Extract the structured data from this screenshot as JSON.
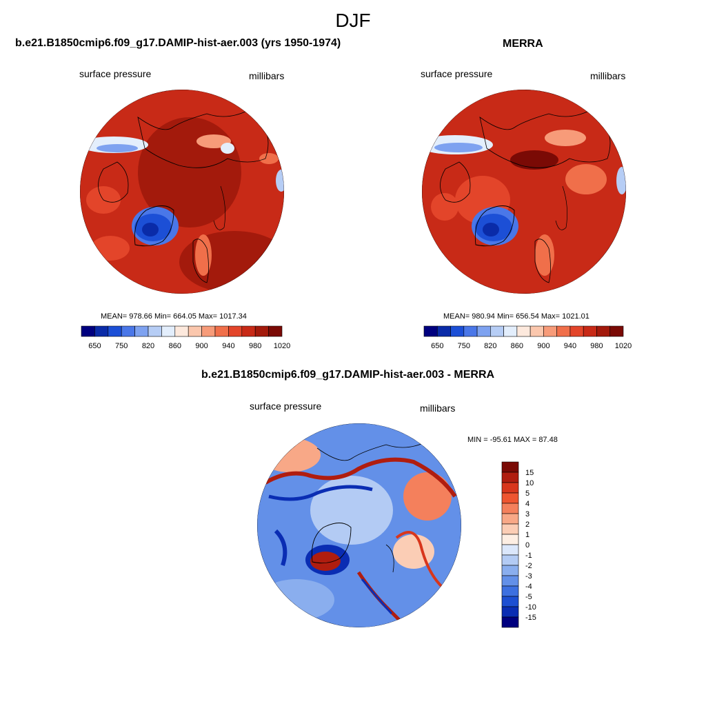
{
  "page": {
    "title": "DJF"
  },
  "panels": [
    {
      "title": "b.e21.B1850cmip6.f09_g17.DAMIP-hist-aer.003 (yrs 1950-1974)",
      "left_label": "surface pressure",
      "right_label": "millibars",
      "stats": "MEAN= 978.66  Min= 664.05  Max= 1017.34"
    },
    {
      "title": "MERRA",
      "left_label": "surface pressure",
      "right_label": "millibars",
      "stats": "MEAN= 980.94  Min= 656.54  Max= 1021.01"
    },
    {
      "title": "b.e21.B1850cmip6.f09_g17.DAMIP-hist-aer.003 - MERRA",
      "left_label": "surface pressure",
      "right_label": "millibars",
      "stats": "MIN = -95.61 MAX =  87.48"
    }
  ],
  "chart_data": [
    {
      "type": "heatmap",
      "projection": "north-polar-stereographic",
      "colorbar": {
        "orientation": "horizontal",
        "levels": [
          650,
          700,
          750,
          800,
          820,
          840,
          860,
          880,
          900,
          920,
          940,
          960,
          980,
          1000,
          1020
        ],
        "tick_labels": [
          "650",
          "750",
          "820",
          "860",
          "900",
          "940",
          "980",
          "1020"
        ],
        "colors": [
          "#00007f",
          "#0a2ba8",
          "#1c4fd6",
          "#4a77e8",
          "#7ea2f0",
          "#b6cdf5",
          "#e3eefc",
          "#fde9dd",
          "#fbc7ad",
          "#f79b79",
          "#f06f4a",
          "#e3452a",
          "#c82a17",
          "#a31a0c",
          "#7a0a05"
        ]
      },
      "mean": 978.66,
      "min": 664.05,
      "max": 1017.34
    },
    {
      "type": "heatmap",
      "projection": "north-polar-stereographic",
      "colorbar": {
        "orientation": "horizontal",
        "levels": [
          650,
          700,
          750,
          800,
          820,
          840,
          860,
          880,
          900,
          920,
          940,
          960,
          980,
          1000,
          1020
        ],
        "tick_labels": [
          "650",
          "750",
          "820",
          "860",
          "900",
          "940",
          "980",
          "1020"
        ],
        "colors": [
          "#00007f",
          "#0a2ba8",
          "#1c4fd6",
          "#4a77e8",
          "#7ea2f0",
          "#b6cdf5",
          "#e3eefc",
          "#fde9dd",
          "#fbc7ad",
          "#f79b79",
          "#f06f4a",
          "#e3452a",
          "#c82a17",
          "#a31a0c",
          "#7a0a05"
        ]
      },
      "mean": 980.94,
      "min": 656.54,
      "max": 1021.01
    },
    {
      "type": "heatmap",
      "projection": "north-polar-stereographic",
      "colorbar": {
        "orientation": "vertical",
        "levels": [
          15,
          10,
          5,
          4,
          3,
          2,
          1,
          0,
          -1,
          -2,
          -3,
          -4,
          -5,
          -10,
          -15
        ],
        "tick_labels": [
          "15",
          "10",
          "5",
          "4",
          "3",
          "2",
          "1",
          "0",
          "-1",
          "-2",
          "-3",
          "-4",
          "-5",
          "-10",
          "-15"
        ],
        "colors": [
          "#7a0a05",
          "#b01d0f",
          "#d8361c",
          "#ee5530",
          "#f4805c",
          "#f8a887",
          "#fbcdb5",
          "#fdeee3",
          "#dbe7fb",
          "#b3cbf4",
          "#8aaeee",
          "#6390e8",
          "#3d70e0",
          "#1d4fd2",
          "#0a2db3",
          "#00007f"
        ]
      },
      "min": -95.61,
      "max": 87.48
    }
  ]
}
